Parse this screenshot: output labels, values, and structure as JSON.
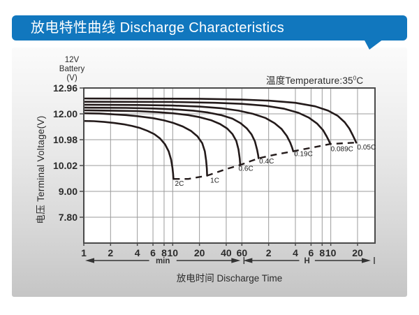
{
  "header": {
    "title": "放电特性曲线 Discharge Characteristics",
    "bg_color": "#1177be",
    "text_color": "#ffffff"
  },
  "panel": {
    "corner_label_lines": [
      "12V",
      "Battery",
      "(V)"
    ]
  },
  "annotations": {
    "temperature_prefix": "温度Temperature:35",
    "temperature_degree": "0",
    "temperature_unit": "C"
  },
  "axes": {
    "y_title": "电压 Terminal Voltage(V)",
    "x_title": "放电时间 Discharge Time"
  },
  "chart_data": {
    "type": "line",
    "title": "Discharge Characteristics",
    "subtitle": "温度Temperature:35°C",
    "battery": "12V Battery (V)",
    "x_scale": "log",
    "x_unit": "minutes",
    "xlabel": "放电时间 Discharge Time",
    "ylabel": "电压 Terminal Voltage(V)",
    "grid": true,
    "y_ticks": [
      {
        "label": "12.96",
        "v": 12.96
      },
      {
        "label": "12.00",
        "v": 12.0
      },
      {
        "label": "10.98",
        "v": 10.98
      },
      {
        "label": "10.02",
        "v": 10.02
      },
      {
        "label": "9.00",
        "v": 9.0
      },
      {
        "label": "7.80",
        "v": 7.8
      }
    ],
    "y_bottom_v": 6.6,
    "x_ticks": [
      {
        "label": "1",
        "t": 1
      },
      {
        "label": "2",
        "t": 2
      },
      {
        "label": "4",
        "t": 4
      },
      {
        "label": "6",
        "t": 6
      },
      {
        "label": "8",
        "t": 8
      },
      {
        "label": "10",
        "t": 10
      },
      {
        "label": "20",
        "t": 20
      },
      {
        "label": "40",
        "t": 40
      },
      {
        "label": "60",
        "t": 60
      },
      {
        "label": "2",
        "t": 120
      },
      {
        "label": "4",
        "t": 240
      },
      {
        "label": "6",
        "t": 360
      },
      {
        "label": "8",
        "t": 480
      },
      {
        "label": "10",
        "t": 600
      },
      {
        "label": "20",
        "t": 1200
      }
    ],
    "x_sections": [
      {
        "label": "min",
        "from_t": 1,
        "to_t": 60
      },
      {
        "label": "H",
        "from_t": 60,
        "to_t": 1200
      }
    ],
    "series": [
      {
        "name": "2C",
        "label_t": 10.6,
        "label_v": 9.22,
        "points": [
          [
            1,
            11.72
          ],
          [
            1.3,
            11.71
          ],
          [
            1.7,
            11.68
          ],
          [
            2.2,
            11.64
          ],
          [
            2.8,
            11.59
          ],
          [
            3.5,
            11.52
          ],
          [
            4.3,
            11.44
          ],
          [
            5.2,
            11.33
          ],
          [
            6.2,
            11.2
          ],
          [
            7.2,
            11.03
          ],
          [
            8.2,
            10.81
          ],
          [
            9.0,
            10.55
          ],
          [
            9.6,
            10.24
          ],
          [
            9.95,
            9.92
          ],
          [
            10.1,
            9.68
          ],
          [
            10.2,
            9.49
          ]
        ]
      },
      {
        "name": "1C",
        "label_t": 26.5,
        "label_v": 9.35,
        "points": [
          [
            1,
            12.02
          ],
          [
            1.5,
            12.01
          ],
          [
            2,
            11.99
          ],
          [
            3,
            11.95
          ],
          [
            4,
            11.91
          ],
          [
            6,
            11.83
          ],
          [
            8,
            11.74
          ],
          [
            10,
            11.65
          ],
          [
            13,
            11.5
          ],
          [
            16,
            11.33
          ],
          [
            19,
            11.11
          ],
          [
            21.5,
            10.85
          ],
          [
            23,
            10.55
          ],
          [
            23.8,
            10.2
          ],
          [
            24.2,
            9.9
          ],
          [
            24.4,
            9.62
          ]
        ]
      },
      {
        "name": "0.6C",
        "label_t": 55,
        "label_v": 9.82,
        "points": [
          [
            1,
            12.13
          ],
          [
            2,
            12.12
          ],
          [
            4,
            12.1
          ],
          [
            7,
            12.06
          ],
          [
            10,
            12.02
          ],
          [
            15,
            11.95
          ],
          [
            20,
            11.87
          ],
          [
            27,
            11.75
          ],
          [
            34,
            11.6
          ],
          [
            41,
            11.42
          ],
          [
            47,
            11.2
          ],
          [
            52,
            10.93
          ],
          [
            55,
            10.62
          ],
          [
            56.8,
            10.28
          ],
          [
            57.5,
            10.04
          ]
        ]
      },
      {
        "name": "0.4C",
        "label_t": 94,
        "label_v": 10.1,
        "points": [
          [
            1,
            12.23
          ],
          [
            3,
            12.22
          ],
          [
            6,
            12.2
          ],
          [
            10,
            12.17
          ],
          [
            17,
            12.12
          ],
          [
            25,
            12.05
          ],
          [
            35,
            11.95
          ],
          [
            47,
            11.81
          ],
          [
            58,
            11.63
          ],
          [
            68,
            11.43
          ],
          [
            77,
            11.19
          ],
          [
            84,
            10.92
          ],
          [
            89,
            10.6
          ],
          [
            91.5,
            10.4
          ],
          [
            92.5,
            10.29
          ]
        ]
      },
      {
        "name": "0.19C",
        "label_t": 232,
        "label_v": 10.37,
        "points": [
          [
            1,
            12.34
          ],
          [
            4,
            12.33
          ],
          [
            10,
            12.31
          ],
          [
            20,
            12.27
          ],
          [
            35,
            12.21
          ],
          [
            55,
            12.12
          ],
          [
            80,
            12.0
          ],
          [
            110,
            11.84
          ],
          [
            140,
            11.63
          ],
          [
            168,
            11.4
          ],
          [
            192,
            11.13
          ],
          [
            210,
            10.87
          ],
          [
            221,
            10.68
          ],
          [
            227,
            10.55
          ]
        ]
      },
      {
        "name": "0.089C",
        "label_t": 600,
        "label_v": 10.55,
        "points": [
          [
            1,
            12.45
          ],
          [
            10,
            12.44
          ],
          [
            30,
            12.41
          ],
          [
            60,
            12.37
          ],
          [
            110,
            12.3
          ],
          [
            180,
            12.19
          ],
          [
            260,
            12.04
          ],
          [
            340,
            11.85
          ],
          [
            420,
            11.62
          ],
          [
            490,
            11.36
          ],
          [
            540,
            11.11
          ],
          [
            570,
            10.95
          ],
          [
            593,
            10.82
          ]
        ]
      },
      {
        "name": "0.05C",
        "label_t": 1190,
        "label_v": 10.62,
        "points": [
          [
            1,
            12.57
          ],
          [
            20,
            12.56
          ],
          [
            60,
            12.53
          ],
          [
            120,
            12.49
          ],
          [
            240,
            12.41
          ],
          [
            400,
            12.28
          ],
          [
            560,
            12.12
          ],
          [
            720,
            11.92
          ],
          [
            860,
            11.67
          ],
          [
            970,
            11.42
          ],
          [
            1060,
            11.16
          ],
          [
            1120,
            10.98
          ],
          [
            1160,
            10.87
          ]
        ]
      }
    ],
    "cutoff_line": {
      "name": "discharge-cutoff",
      "style": "dashed",
      "points": [
        [
          10.2,
          9.49
        ],
        [
          15,
          9.49
        ],
        [
          24.4,
          9.62
        ],
        [
          40,
          9.88
        ],
        [
          57.5,
          10.04
        ],
        [
          75,
          10.18
        ],
        [
          92.5,
          10.29
        ],
        [
          140,
          10.42
        ],
        [
          227,
          10.55
        ],
        [
          350,
          10.67
        ],
        [
          593,
          10.82
        ],
        [
          850,
          10.85
        ],
        [
          1160,
          10.87
        ]
      ]
    },
    "colors": {
      "curve": "#231a1a",
      "grid": "#9b9b9b",
      "border": "#4a4a4a",
      "text": "#2b2b2b"
    }
  }
}
